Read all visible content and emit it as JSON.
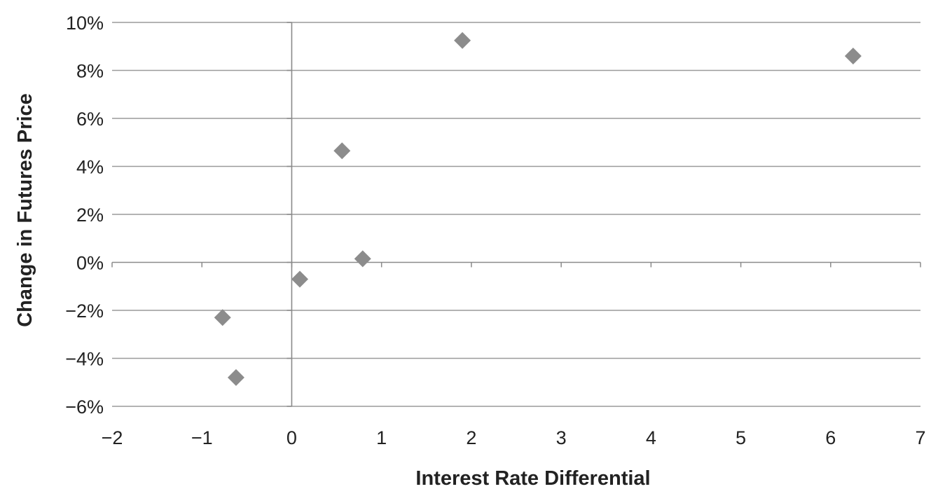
{
  "chart_data": {
    "type": "scatter",
    "title": "",
    "xlabel": "Interest Rate Differential",
    "ylabel": "Change in Futures Price",
    "xlim": [
      -2,
      7
    ],
    "ylim": [
      -6,
      10
    ],
    "x_ticks": [
      -2,
      -1,
      0,
      1,
      2,
      3,
      4,
      5,
      6,
      7
    ],
    "x_tick_labels": [
      "−2",
      "−1",
      "0",
      "1",
      "2",
      "3",
      "4",
      "5",
      "6",
      "7"
    ],
    "y_ticks": [
      -6,
      -4,
      -2,
      0,
      2,
      4,
      6,
      8,
      10
    ],
    "y_tick_labels": [
      "−6%",
      "−4%",
      "−2%",
      "0%",
      "2%",
      "4%",
      "6%",
      "8%",
      "10%"
    ],
    "grid": "horizontal",
    "legend": "none",
    "marker": "diamond",
    "marker_color": "#8c8c8c",
    "gridline_color": "#9a9a9a",
    "points": [
      {
        "x": -0.77,
        "y": -2.3
      },
      {
        "x": -0.62,
        "y": -4.8
      },
      {
        "x": 0.09,
        "y": -0.7
      },
      {
        "x": 0.56,
        "y": 4.65
      },
      {
        "x": 0.79,
        "y": 0.15
      },
      {
        "x": 1.9,
        "y": 9.25
      },
      {
        "x": 6.25,
        "y": 8.6
      }
    ]
  }
}
